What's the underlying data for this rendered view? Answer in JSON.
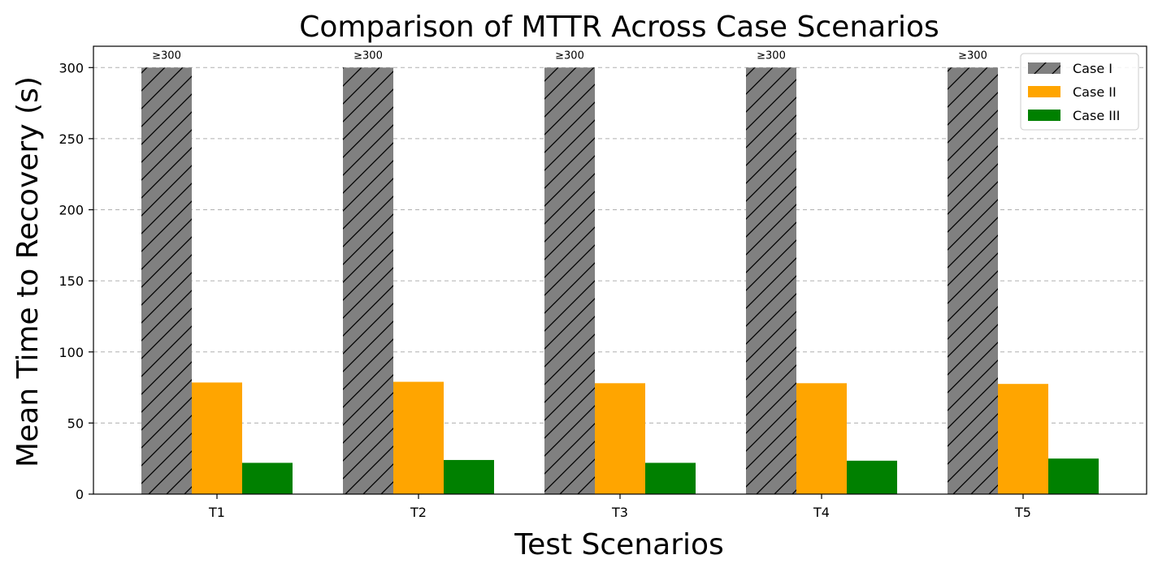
{
  "chart_data": {
    "type": "bar",
    "title": "Comparison of MTTR Across Case Scenarios",
    "xlabel": "Test Scenarios",
    "ylabel": "Mean Time to Recovery (s)",
    "categories": [
      "T1",
      "T2",
      "T3",
      "T4",
      "T5"
    ],
    "ylim": [
      0,
      315
    ],
    "yticks": [
      0,
      50,
      100,
      150,
      200,
      250,
      300
    ],
    "grid": "y-dashed",
    "legend_position": "top-right",
    "series": [
      {
        "name": "Case I",
        "values": [
          300,
          300,
          300,
          300,
          300
        ],
        "color": "#808080",
        "pattern": "hatch-diagonal",
        "labels": [
          "≥300",
          "≥300",
          "≥300",
          "≥300",
          "≥300"
        ]
      },
      {
        "name": "Case II",
        "values": [
          78.5,
          79,
          78,
          78,
          77.5
        ],
        "color": "#FFA500"
      },
      {
        "name": "Case III",
        "values": [
          22,
          24,
          22,
          23.5,
          25
        ],
        "color": "#008000"
      }
    ]
  }
}
